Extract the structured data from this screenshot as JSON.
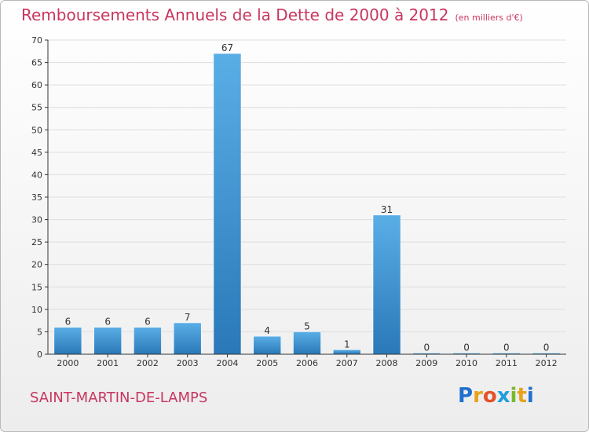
{
  "header": {
    "title": "Remboursements Annuels de la Dette de 2000 à 2012",
    "unit": "(en milliers d'€)"
  },
  "footer": {
    "commune": "SAINT-MARTIN-DE-LAMPS",
    "logo_letters": [
      "P",
      "r",
      "o",
      "x",
      "i",
      "t",
      "i"
    ]
  },
  "colors": {
    "title": "#c8365f",
    "bar_light": "#5aaee6",
    "bar_dark": "#2a78b8",
    "grid": "#dddddd",
    "axis": "#333333"
  },
  "chart_data": {
    "type": "bar",
    "title": "Remboursements Annuels de la Dette de 2000 à 2012",
    "subtitle": "(en milliers d'€)",
    "categories": [
      "2000",
      "2001",
      "2002",
      "2003",
      "2004",
      "2005",
      "2006",
      "2007",
      "2008",
      "2009",
      "2010",
      "2011",
      "2012"
    ],
    "values": [
      6,
      6,
      6,
      7,
      67,
      4,
      5,
      1,
      31,
      0,
      0,
      0,
      0
    ],
    "ylim": [
      0,
      70
    ],
    "yticks": [
      0,
      5,
      10,
      15,
      20,
      25,
      30,
      35,
      40,
      45,
      50,
      55,
      60,
      65,
      70
    ],
    "grid": true,
    "data_labels": true
  }
}
